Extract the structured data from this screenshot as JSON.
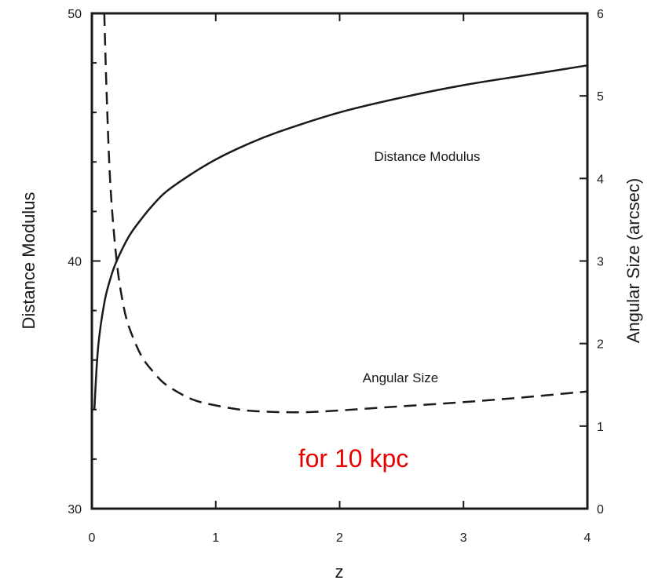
{
  "chart_data": {
    "type": "line",
    "xlabel": "z",
    "ylabel_left": "Distance Modulus",
    "ylabel_right": "Angular Size (arcsec)",
    "xlim": [
      0,
      4
    ],
    "ylim_left": [
      30,
      50
    ],
    "ylim_right": [
      0,
      6
    ],
    "x_ticks": [
      0,
      1,
      2,
      3,
      4
    ],
    "x_tick_labels": [
      "0",
      "1",
      "2",
      "3",
      "4"
    ],
    "y_left_ticks": [
      30,
      40,
      50
    ],
    "y_left_tick_labels": [
      "30",
      "40",
      "50"
    ],
    "y_right_ticks": [
      0,
      1,
      2,
      3,
      4,
      5,
      6
    ],
    "y_right_tick_labels": [
      "0",
      "1",
      "2",
      "3",
      "4",
      "5",
      "6"
    ],
    "grid": false,
    "series": [
      {
        "name": "Distance Modulus",
        "axis": "left",
        "style": "solid",
        "x": [
          0.02,
          0.05,
          0.1,
          0.15,
          0.2,
          0.3,
          0.4,
          0.5,
          0.6,
          0.8,
          1.0,
          1.25,
          1.5,
          2.0,
          2.5,
          3.0,
          3.5,
          4.0
        ],
        "y": [
          34.0,
          36.5,
          38.3,
          39.3,
          40.0,
          41.0,
          41.7,
          42.3,
          42.8,
          43.5,
          44.1,
          44.7,
          45.2,
          46.0,
          46.6,
          47.1,
          47.5,
          47.9
        ]
      },
      {
        "name": "Angular Size",
        "axis": "right",
        "style": "dashed",
        "x": [
          0.1,
          0.12,
          0.15,
          0.2,
          0.25,
          0.3,
          0.4,
          0.5,
          0.6,
          0.8,
          1.0,
          1.25,
          1.5,
          1.75,
          2.0,
          2.5,
          3.0,
          3.5,
          4.0
        ],
        "y": [
          6.0,
          5.0,
          3.9,
          3.0,
          2.5,
          2.2,
          1.85,
          1.65,
          1.5,
          1.33,
          1.25,
          1.19,
          1.17,
          1.17,
          1.19,
          1.24,
          1.29,
          1.35,
          1.42
        ]
      }
    ],
    "curve_labels": [
      {
        "text": "Distance Modulus",
        "series": "Distance Modulus"
      },
      {
        "text": "Angular Size",
        "series": "Angular Size"
      }
    ],
    "annotation": {
      "text": "for 10 kpc",
      "color": "#e60000"
    }
  },
  "colors": {
    "axis": "#1a1a1a",
    "line": "#1a1a1a",
    "annotation": "#e60000"
  }
}
